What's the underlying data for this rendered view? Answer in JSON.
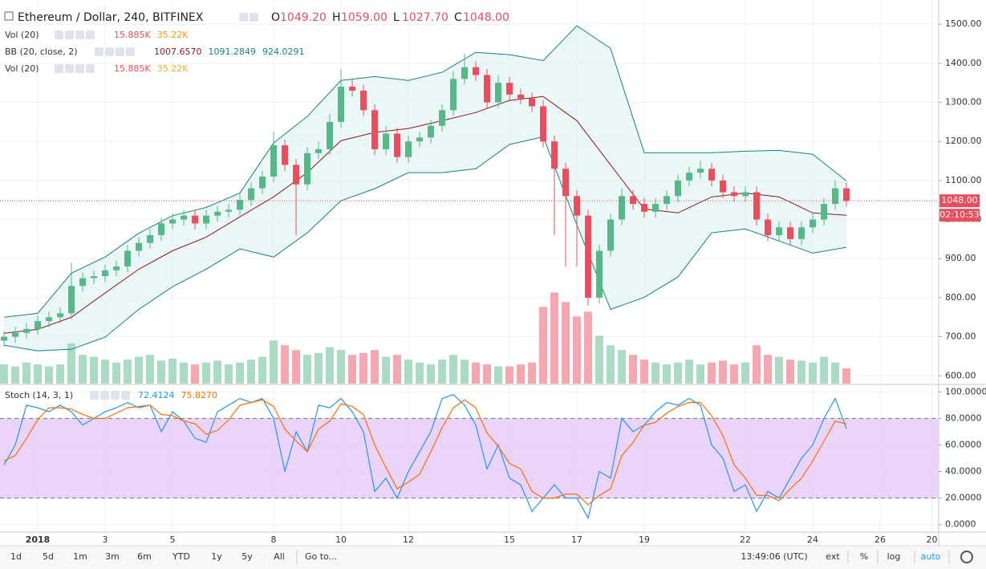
{
  "header": {
    "title": "Ethereum / Dollar, 240, BITFINEX",
    "ohlc_keys": [
      "O",
      "H",
      "L",
      "C"
    ],
    "ohlc_values": [
      "1049.20",
      "1059.00",
      "1027.70",
      "1048.00"
    ],
    "indicators": [
      {
        "name": "Vol (20)",
        "values": [
          "15.885K",
          "35.22K"
        ]
      },
      {
        "name": "BB (20, close, 2)",
        "values": [
          "1007.6570",
          "1091.2849",
          "924.0291"
        ]
      },
      {
        "name": "Vol (20)",
        "values": [
          "15.885K",
          "35.22K"
        ]
      }
    ],
    "stoch": {
      "name": "Stoch (14, 3, 1)",
      "values": [
        "72.4124",
        "75.8270"
      ]
    },
    "last_price_label": "1048.00",
    "countdown": "02:10:53"
  },
  "toolbar": {
    "ranges": [
      "1d",
      "5d",
      "1m",
      "3m",
      "6m",
      "YTD",
      "1y",
      "5y",
      "All"
    ],
    "goto": "Go to...",
    "time": "13:49:06 (UTC)",
    "options": [
      "ext",
      "%",
      "log",
      "auto"
    ]
  },
  "chart_data": [
    {
      "type": "candlestick",
      "up_color": "#53b987",
      "down_color": "#eb4d5c",
      "open": [
        690,
        700,
        710,
        720,
        740,
        750,
        760,
        830,
        850,
        855,
        870,
        880,
        920,
        940,
        960,
        990,
        1000,
        1010,
        990,
        1010,
        1020,
        1025,
        1050,
        1080,
        1110,
        1190,
        1140,
        1090,
        1170,
        1180,
        1250,
        1340,
        1330,
        1280,
        1180,
        1220,
        1160,
        1200,
        1210,
        1240,
        1280,
        1360,
        1390,
        1370,
        1300,
        1350,
        1320,
        1310,
        1290,
        1200,
        1130,
        1060,
        1010,
        800,
        920,
        1000,
        1060,
        1040,
        1020,
        1040,
        1060,
        1100,
        1120,
        1130,
        1100,
        1070,
        1060,
        1070,
        1000,
        960,
        980,
        950,
        980,
        1000,
        1040,
        1080
      ],
      "high": [
        715,
        725,
        735,
        755,
        765,
        775,
        890,
        865,
        870,
        885,
        895,
        935,
        955,
        975,
        1005,
        1015,
        1025,
        1025,
        1025,
        1035,
        1040,
        1065,
        1095,
        1125,
        1225,
        1205,
        1155,
        1185,
        1200,
        1270,
        1385,
        1360,
        1345,
        1295,
        1240,
        1235,
        1215,
        1225,
        1255,
        1295,
        1380,
        1425,
        1405,
        1385,
        1370,
        1365,
        1335,
        1325,
        1305,
        1215,
        1145,
        1075,
        1025,
        935,
        1015,
        1080,
        1075,
        1055,
        1055,
        1075,
        1115,
        1135,
        1150,
        1145,
        1115,
        1085,
        1085,
        1085,
        1015,
        995,
        995,
        995,
        1015,
        1055,
        1100,
        1095
      ],
      "low": [
        675,
        685,
        695,
        705,
        725,
        735,
        745,
        815,
        835,
        840,
        855,
        865,
        905,
        925,
        945,
        975,
        985,
        975,
        975,
        995,
        1005,
        1010,
        1035,
        1065,
        1095,
        1125,
        960,
        1075,
        1155,
        1165,
        1235,
        1315,
        1265,
        1165,
        1165,
        1145,
        1145,
        1185,
        1195,
        1225,
        1265,
        1345,
        1355,
        1285,
        1285,
        1305,
        1295,
        1275,
        1185,
        960,
        880,
        880,
        780,
        785,
        905,
        985,
        1025,
        1005,
        1005,
        1025,
        1045,
        1085,
        1105,
        1085,
        1055,
        1045,
        1045,
        985,
        945,
        945,
        935,
        935,
        965,
        985,
        1025,
        1033
      ],
      "close": [
        700,
        710,
        720,
        740,
        750,
        760,
        830,
        850,
        855,
        870,
        880,
        920,
        940,
        960,
        990,
        1000,
        1010,
        990,
        1010,
        1020,
        1025,
        1050,
        1080,
        1110,
        1190,
        1140,
        1090,
        1170,
        1180,
        1250,
        1340,
        1330,
        1280,
        1180,
        1220,
        1160,
        1200,
        1210,
        1240,
        1280,
        1360,
        1390,
        1370,
        1300,
        1350,
        1320,
        1310,
        1290,
        1200,
        1130,
        1060,
        1010,
        800,
        920,
        1000,
        1060,
        1040,
        1020,
        1040,
        1060,
        1100,
        1120,
        1130,
        1100,
        1070,
        1060,
        1070,
        1000,
        960,
        980,
        950,
        980,
        1000,
        1040,
        1080,
        1048
      ],
      "last_price": 1048,
      "ylim": [
        580,
        1562
      ],
      "yticks": [
        {
          "value": 600,
          "label": "600.00"
        },
        {
          "value": 700,
          "label": "700.00"
        },
        {
          "value": 800,
          "label": "800.00"
        },
        {
          "value": 900,
          "label": "900.00"
        },
        {
          "value": 1000,
          "label": "1000.00"
        },
        {
          "value": 1100,
          "label": "1100.00"
        },
        {
          "value": 1200,
          "label": "1200.00"
        },
        {
          "value": 1300,
          "label": "1300.00"
        },
        {
          "value": 1400,
          "label": "1400.00"
        },
        {
          "value": 1500,
          "label": "1500.00"
        }
      ],
      "xlim": [
        -0.36,
        83.21
      ],
      "xticks": [
        {
          "value": 3,
          "label": "2018"
        },
        {
          "value": 9,
          "label": "3"
        },
        {
          "value": 15,
          "label": "5"
        },
        {
          "value": 24,
          "label": "8"
        },
        {
          "value": 30,
          "label": "10"
        },
        {
          "value": 36,
          "label": "12"
        },
        {
          "value": 45,
          "label": "15"
        },
        {
          "value": 51,
          "label": "17"
        },
        {
          "value": 57,
          "label": "19"
        },
        {
          "value": 66,
          "label": "22"
        },
        {
          "value": 72,
          "label": "24"
        },
        {
          "value": 78,
          "label": "26"
        },
        {
          "value": 82.6,
          "label": "20"
        }
      ],
      "grid": true,
      "bollinger": {
        "x": [
          0,
          3,
          6,
          9,
          12,
          15,
          18,
          21,
          24,
          27,
          30,
          33,
          36,
          39,
          42,
          45,
          48,
          51,
          54,
          57,
          60,
          63,
          66,
          69,
          72,
          75
        ],
        "upper": [
          750,
          760,
          863,
          904,
          965,
          1010,
          1031,
          1068,
          1196,
          1264,
          1356,
          1366,
          1356,
          1377,
          1428,
          1422,
          1407,
          1496,
          1438,
          1171,
          1171,
          1171,
          1175,
          1177,
          1167,
          1099
        ],
        "middle": [
          709,
          719,
          750,
          812,
          873,
          920,
          955,
          1007,
          1058,
          1120,
          1202,
          1223,
          1233,
          1253,
          1274,
          1305,
          1315,
          1253,
          1140,
          1027,
          1017,
          1058,
          1068,
          1058,
          1017,
          1011
        ],
        "lower": [
          678,
          664,
          668,
          699,
          770,
          828,
          873,
          925,
          904,
          966,
          1048,
          1079,
          1120,
          1120,
          1130,
          1192,
          1212,
          986,
          770,
          801,
          853,
          966,
          976,
          945,
          914,
          929
        ],
        "band_color": "#138484",
        "middle_color": "#8b1a1a",
        "fill": "#e3f2f2"
      },
      "volume": {
        "values": [
          20,
          18,
          22,
          20,
          18,
          20,
          42,
          30,
          28,
          25,
          22,
          25,
          28,
          30,
          24,
          26,
          22,
          20,
          22,
          24,
          20,
          22,
          25,
          28,
          45,
          40,
          35,
          30,
          32,
          38,
          35,
          30,
          32,
          35,
          28,
          30,
          25,
          22,
          20,
          25,
          30,
          25,
          22,
          20,
          18,
          18,
          20,
          22,
          80,
          95,
          85,
          70,
          75,
          50,
          40,
          35,
          30,
          25,
          22,
          20,
          22,
          25,
          20,
          22,
          24,
          20,
          22,
          40,
          30,
          28,
          25,
          24,
          22,
          28,
          22,
          15.885
        ],
        "ylim": [
          0,
          400
        ],
        "up_color": "#a9dcc3",
        "down_color": "#f5a6ae"
      }
    },
    {
      "type": "line",
      "series": [
        {
          "color": "#2196f3",
          "values": [
            45,
            60,
            90,
            88,
            85,
            90,
            85,
            75,
            80,
            85,
            88,
            92,
            88,
            90,
            70,
            85,
            78,
            65,
            62,
            85,
            90,
            95,
            92,
            95,
            80,
            40,
            70,
            55,
            90,
            88,
            95,
            85,
            70,
            25,
            35,
            20,
            40,
            55,
            70,
            95,
            98,
            90,
            75,
            42,
            60,
            35,
            30,
            10,
            20,
            30,
            20,
            20,
            5,
            40,
            35,
            80,
            70,
            75,
            85,
            92,
            90,
            95,
            90,
            60,
            50,
            25,
            30,
            10,
            25,
            20,
            35,
            50,
            60,
            80,
            95,
            72.4124
          ]
        },
        {
          "color": "#ff6d00",
          "values": [
            48,
            52,
            65,
            79,
            88,
            88,
            87,
            83,
            80,
            80,
            84,
            88,
            89,
            90,
            83,
            82,
            78,
            76,
            68,
            71,
            79,
            90,
            92,
            94,
            89,
            72,
            63,
            55,
            72,
            78,
            91,
            89,
            83,
            60,
            43,
            27,
            32,
            38,
            55,
            73,
            88,
            94,
            88,
            69,
            59,
            46,
            42,
            25,
            20,
            20,
            23,
            23,
            15,
            22,
            27,
            52,
            62,
            75,
            77,
            84,
            89,
            92,
            92,
            82,
            67,
            45,
            35,
            22,
            22,
            18,
            27,
            35,
            48,
            63,
            78,
            75.827
          ]
        }
      ],
      "bands": [
        20,
        80
      ],
      "band_color": "#e6c9f9",
      "ylim": [
        -5,
        105
      ],
      "yticks": [
        {
          "value": 0,
          "label": "0.0000"
        },
        {
          "value": 20,
          "label": "20.0000"
        },
        {
          "value": 40,
          "label": "40.0000"
        },
        {
          "value": 60,
          "label": "60.0000"
        },
        {
          "value": 80,
          "label": "80.0000"
        },
        {
          "value": 100,
          "label": "100.0000"
        }
      ]
    }
  ]
}
